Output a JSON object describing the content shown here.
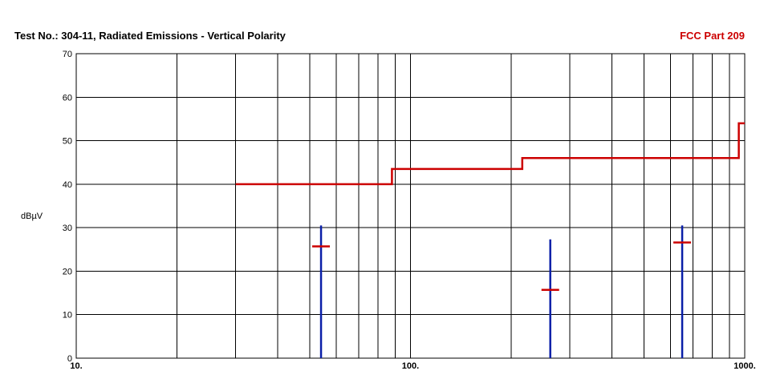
{
  "header": {
    "title": "Test No.: 304-11, Radiated Emissions - Vertical Polarity",
    "spec": "FCC Part  209"
  },
  "chart_data": {
    "type": "line",
    "xscale": "log",
    "xlim": [
      10,
      1000
    ],
    "ylim": [
      0,
      70
    ],
    "yticks": [
      0,
      10,
      20,
      30,
      40,
      50,
      60,
      70
    ],
    "ytick_labels": [
      "0",
      "10",
      "20",
      "30",
      "40",
      "50",
      "60",
      "70"
    ],
    "xtick_labels": [
      {
        "value": 10,
        "label": "10."
      },
      {
        "value": 100,
        "label": "100."
      },
      {
        "value": 1000,
        "label": "1000."
      }
    ],
    "ylabel": "dBµV",
    "xlabel": "",
    "grid": true,
    "colors": {
      "limit": "#cc0000",
      "peak": "#0a1fa8",
      "quasi_peak": "#cc0000",
      "grid": "#000000"
    },
    "limit_line": [
      {
        "x": 30,
        "y": 40
      },
      {
        "x": 88,
        "y": 40
      },
      {
        "x": 88,
        "y": 43.5
      },
      {
        "x": 216,
        "y": 43.5
      },
      {
        "x": 216,
        "y": 46
      },
      {
        "x": 960,
        "y": 46
      },
      {
        "x": 960,
        "y": 54
      },
      {
        "x": 1000,
        "y": 54
      }
    ],
    "peak_emissions": [
      {
        "x": 54,
        "y": 30.5
      },
      {
        "x": 262,
        "y": 27.3
      },
      {
        "x": 650,
        "y": 30.5
      }
    ],
    "quasi_peak_emissions": [
      {
        "x": 54,
        "y": 25.7
      },
      {
        "x": 262,
        "y": 15.7
      },
      {
        "x": 650,
        "y": 26.6
      }
    ]
  }
}
